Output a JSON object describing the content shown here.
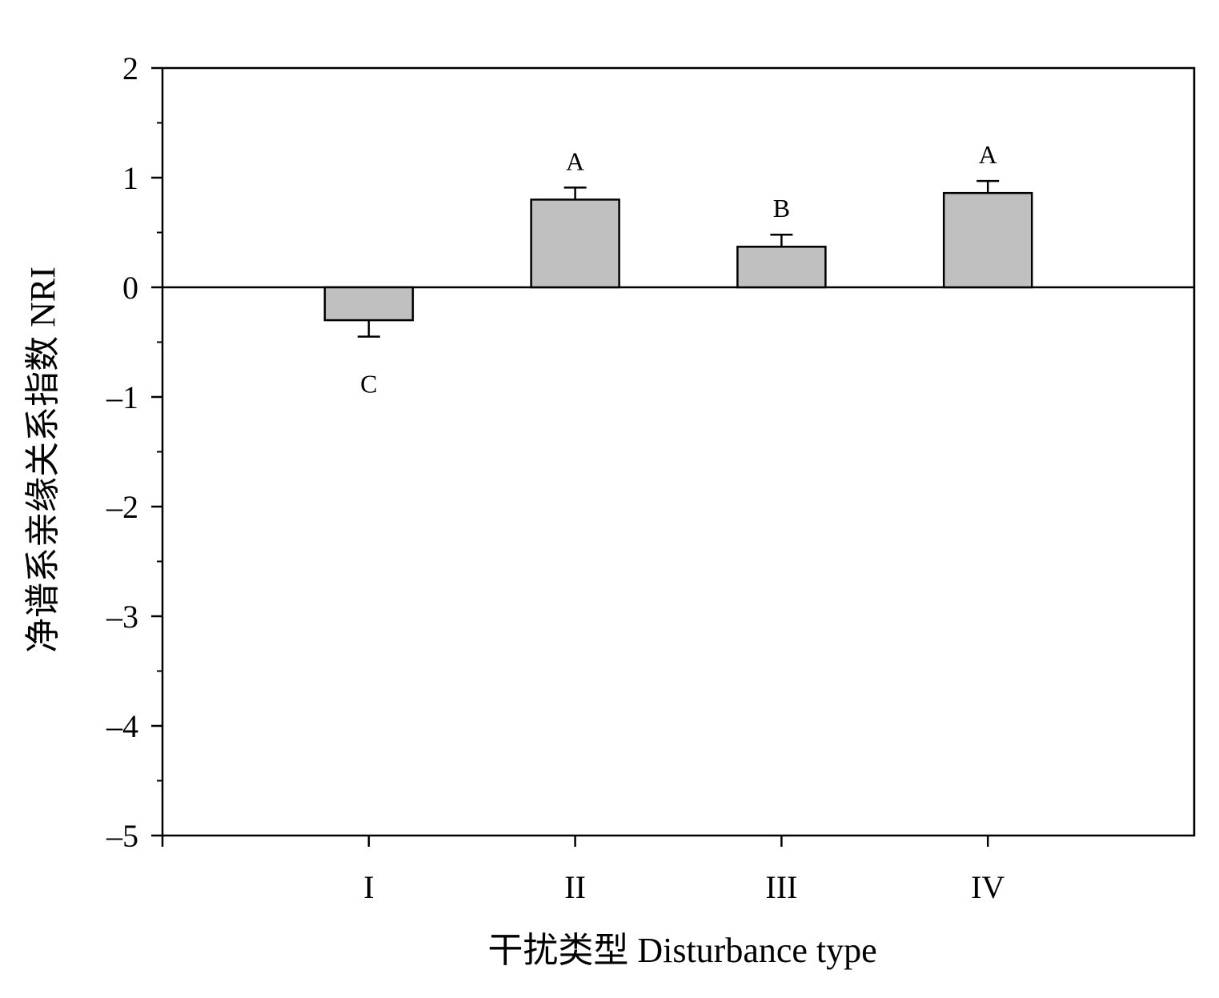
{
  "chart_data": {
    "type": "bar",
    "categories": [
      "I",
      "II",
      "III",
      "IV"
    ],
    "values": [
      -0.3,
      0.8,
      0.37,
      0.86
    ],
    "errors": [
      0.15,
      0.11,
      0.11,
      0.11
    ],
    "significance_labels": [
      "C",
      "A",
      "B",
      "A"
    ],
    "xlabel": "干扰类型  Disturbance type",
    "ylabel": "净谱系亲缘关系指数  NRI",
    "ylim": [
      -5,
      2
    ],
    "yticks": [
      2,
      1,
      0,
      -1,
      -2,
      -3,
      -4,
      -5
    ],
    "ytick_labels": [
      "2",
      "1",
      "0",
      "–1",
      "–2",
      "–3",
      "–4",
      "–5"
    ],
    "grid": false,
    "zero_line": true,
    "colors": {
      "bar_fill": "#c0c0c0",
      "bar_stroke": "#000000",
      "axis": "#000000"
    }
  }
}
